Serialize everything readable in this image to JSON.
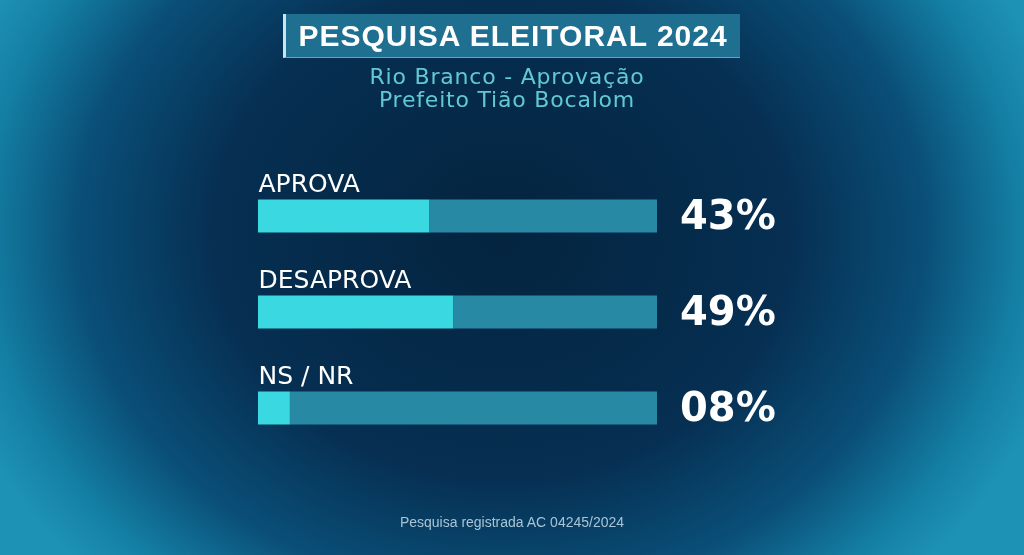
{
  "chart_data": {
    "type": "bar",
    "orientation": "horizontal",
    "stacked": true,
    "title": "PESQUISA ELEITORAL 2024",
    "subtitle": "Rio Branco - Aprovação\nPrefeito Tião Bocalom",
    "categories": [
      "APROVA",
      "DESAPROVA",
      "NS / NR"
    ],
    "series": [
      {
        "color": "#3ad8e0",
        "values": [
          43,
          49,
          8
        ],
        "value_labels": [
          "43%",
          "49%",
          "08%"
        ]
      },
      {
        "color": "#2889a5",
        "values": [
          57,
          51,
          92
        ]
      }
    ],
    "xlim": [
      0,
      100
    ],
    "tick_labels": "y",
    "annotations": [
      "Pesquisa registrada AC 04245/2024"
    ]
  }
}
